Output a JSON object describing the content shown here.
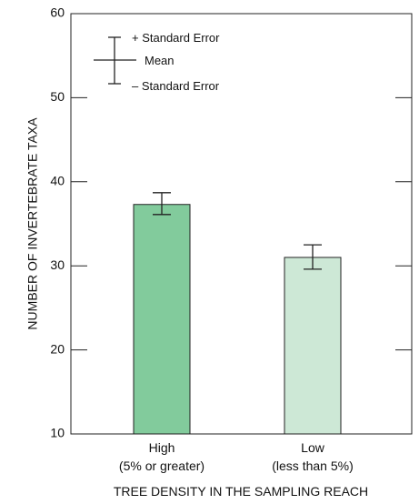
{
  "chart_data": {
    "type": "bar",
    "xlabel": "TREE DENSITY IN THE SAMPLING REACH",
    "ylabel": "NUMBER OF INVERTEBRATE TAXA",
    "ylim": [
      10,
      60
    ],
    "yticks": [
      10,
      20,
      30,
      40,
      50,
      60
    ],
    "categories": [
      {
        "name": "High",
        "sub": "(5% or greater)"
      },
      {
        "name": "Low",
        "sub": "(less than 5%)"
      }
    ],
    "values": [
      37.3,
      31.0
    ],
    "se_upper": [
      38.7,
      32.5
    ],
    "se_lower": [
      36.1,
      29.6
    ],
    "bar_colors": [
      "#82cb9c",
      "#cde8d6"
    ],
    "legend": {
      "upper": "+ Standard Error",
      "mean": "Mean",
      "lower": "– Standard Error"
    },
    "grid": false
  }
}
